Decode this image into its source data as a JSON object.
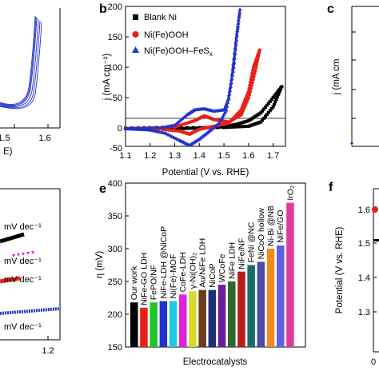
{
  "panels": {
    "a": {
      "x_ticks": [
        "1.5",
        "1.6"
      ],
      "x_label_fragment": "E)"
    },
    "b": {
      "letter": "b",
      "chart_data": {
        "type": "line",
        "xlabel": "Potential (V vs. RHE)",
        "ylabel": "j (mA cm⁻²)",
        "xlim": [
          1.1,
          1.75
        ],
        "ylim": [
          -30,
          200
        ],
        "x_ticks": [
          "1.1",
          "1.2",
          "1.3",
          "1.4",
          "1.5",
          "1.6",
          "1.7"
        ],
        "y_ticks": [
          "-50",
          "0",
          "50",
          "100",
          "150",
          "200"
        ],
        "legend_position": "top-left",
        "series": [
          {
            "name": "Blank Ni",
            "color": "#000000",
            "marker": "square",
            "forward": [
              [
                1.1,
                0
              ],
              [
                1.3,
                0.5
              ],
              [
                1.5,
                1
              ],
              [
                1.6,
                3
              ],
              [
                1.65,
                10
              ],
              [
                1.7,
                35
              ],
              [
                1.735,
                68
              ]
            ],
            "reverse": [
              [
                1.735,
                68
              ],
              [
                1.7,
                50
              ],
              [
                1.65,
                25
              ],
              [
                1.6,
                12
              ],
              [
                1.55,
                6
              ],
              [
                1.5,
                2
              ],
              [
                1.4,
                0
              ],
              [
                1.3,
                -1
              ],
              [
                1.1,
                -1
              ]
            ]
          },
          {
            "name": "Ni(Fe)OOH",
            "color": "#e8201a",
            "marker": "circle",
            "forward": [
              [
                1.1,
                0
              ],
              [
                1.3,
                2
              ],
              [
                1.38,
                12
              ],
              [
                1.42,
                20
              ],
              [
                1.46,
                14
              ],
              [
                1.52,
                10
              ],
              [
                1.57,
                22
              ],
              [
                1.6,
                50
              ],
              [
                1.625,
                90
              ],
              [
                1.645,
                128
              ]
            ],
            "reverse": [
              [
                1.645,
                128
              ],
              [
                1.62,
                100
              ],
              [
                1.6,
                60
              ],
              [
                1.57,
                30
              ],
              [
                1.52,
                8
              ],
              [
                1.46,
                3
              ],
              [
                1.4,
                -2
              ],
              [
                1.36,
                -10
              ],
              [
                1.32,
                -5
              ],
              [
                1.25,
                -2
              ],
              [
                1.1,
                -1
              ]
            ]
          },
          {
            "name": "Ni(Fe)OOH–FeS",
            "legend_subscript": "x",
            "color": "#2233cc",
            "marker": "triangle",
            "forward": [
              [
                1.1,
                0
              ],
              [
                1.25,
                1
              ],
              [
                1.3,
                5
              ],
              [
                1.35,
                22
              ],
              [
                1.38,
                30
              ],
              [
                1.42,
                32
              ],
              [
                1.46,
                28
              ],
              [
                1.5,
                30
              ],
              [
                1.52,
                50
              ],
              [
                1.54,
                100
              ],
              [
                1.555,
                160
              ],
              [
                1.565,
                195
              ]
            ],
            "reverse": [
              [
                1.565,
                195
              ],
              [
                1.55,
                150
              ],
              [
                1.53,
                80
              ],
              [
                1.51,
                30
              ],
              [
                1.48,
                8
              ],
              [
                1.44,
                -5
              ],
              [
                1.4,
                -18
              ],
              [
                1.36,
                -28
              ],
              [
                1.32,
                -20
              ],
              [
                1.26,
                -8
              ],
              [
                1.2,
                -3
              ],
              [
                1.1,
                -1
              ]
            ]
          }
        ]
      }
    },
    "c": {
      "letter": "c",
      "ylabel_fragment": "j (mA cm"
    },
    "d": {
      "x_tick": "1.2",
      "tafel_labels": [
        "mV dec⁻¹",
        "mV dec⁻¹",
        "mV dec⁻¹",
        "mV dec⁻¹"
      ]
    },
    "e": {
      "letter": "e",
      "chart_data": {
        "type": "bar",
        "xlabel": "Electrocatalysts",
        "ylabel": "η (mV)",
        "ylim": [
          150,
          400
        ],
        "y_ticks": [
          "150",
          "200",
          "250",
          "300",
          "350",
          "400"
        ],
        "categories": [
          "Our work",
          "NiFe-GO LDH",
          "FePO/NF",
          "NiFe-LDH @NiCoP",
          "Ni(Fe)-MOF",
          "CoFe-LDH",
          "γ-Ni(OH)₂",
          "Au/NiFe LDH",
          "NiCoP",
          "WCoFe",
          "NiFe LDH",
          "NiFe/NF",
          "FeNi @NC",
          "NiCoO hollow",
          "Ni-Bi @NB",
          "NiFe/GO",
          "IrO₂"
        ],
        "values": [
          218,
          210,
          218,
          220,
          220,
          230,
          235,
          237,
          237,
          245,
          250,
          265,
          275,
          280,
          300,
          305,
          370
        ],
        "colors": [
          "#000000",
          "#e8201a",
          "#22c22a",
          "#2233cc",
          "#1ec8e0",
          "#e020e0",
          "#d8d82a",
          "#6b3b1b",
          "#1c2f7a",
          "#6b1fa0",
          "#2a6b2a",
          "#b81a1a",
          "#1a6b6b",
          "#4a4aa8",
          "#f08a1a",
          "#6060e0",
          "#e03a9a"
        ]
      }
    },
    "f": {
      "letter": "f",
      "ylabel": "Potential (V vs. RHE)",
      "y_ticks": [
        "1.6",
        "1.5",
        "1.4",
        "1.3"
      ],
      "x_tick": "0"
    }
  }
}
